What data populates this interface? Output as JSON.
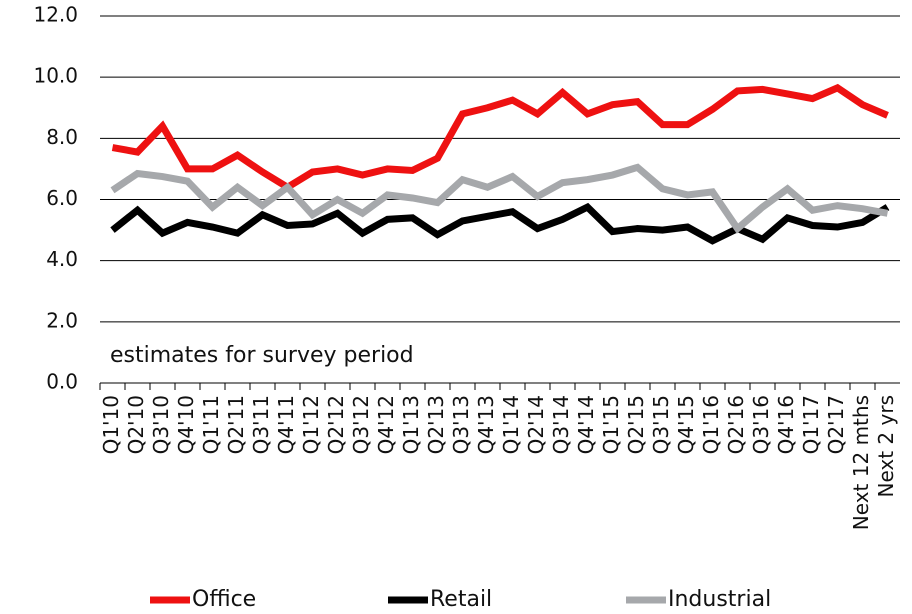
{
  "chart_data": {
    "type": "line",
    "annotation": "estimates for survey period",
    "categories": [
      "Q1'10",
      "Q2'10",
      "Q3'10",
      "Q4'10",
      "Q1'11",
      "Q2'11",
      "Q3'11",
      "Q4'11",
      "Q1'12",
      "Q2'12",
      "Q3'12",
      "Q4'12",
      "Q1'13",
      "Q2'13",
      "Q3'13",
      "Q4'13",
      "Q1'14",
      "Q2'14",
      "Q3'14",
      "Q4'14",
      "Q1'15",
      "Q2'15",
      "Q3'15",
      "Q4'15",
      "Q1'16",
      "Q2'16",
      "Q3'16",
      "Q4'16",
      "Q1'17",
      "Q2'17",
      "Next 12 mths",
      "Next 2 yrs"
    ],
    "series": [
      {
        "name": "Office",
        "color": "#ee1111",
        "values": [
          7.7,
          7.55,
          8.4,
          7.0,
          7.0,
          7.45,
          6.9,
          6.4,
          6.9,
          7.0,
          6.8,
          7.0,
          6.95,
          7.35,
          8.8,
          9.0,
          9.25,
          8.8,
          9.5,
          8.8,
          9.1,
          9.2,
          8.45,
          8.45,
          8.95,
          9.55,
          9.6,
          9.45,
          9.3,
          9.65,
          9.1,
          8.75
        ]
      },
      {
        "name": "Retail",
        "color": "#000000",
        "values": [
          5.0,
          5.65,
          4.9,
          5.25,
          5.1,
          4.9,
          5.5,
          5.15,
          5.2,
          5.55,
          4.9,
          5.35,
          5.4,
          4.85,
          5.3,
          5.45,
          5.6,
          5.05,
          5.35,
          5.75,
          4.95,
          5.05,
          5.0,
          5.1,
          4.65,
          5.05,
          4.7,
          5.4,
          5.15,
          5.1,
          5.25,
          5.75
        ]
      },
      {
        "name": "Industrial",
        "color": "#a6a8ab",
        "values": [
          6.3,
          6.85,
          6.75,
          6.6,
          5.75,
          6.4,
          5.8,
          6.4,
          5.5,
          6.0,
          5.55,
          6.15,
          6.05,
          5.9,
          6.65,
          6.4,
          6.75,
          6.1,
          6.55,
          6.65,
          6.8,
          7.05,
          6.35,
          6.15,
          6.25,
          5.05,
          5.75,
          6.35,
          5.65,
          5.8,
          5.7,
          5.55
        ]
      }
    ],
    "ylim": [
      0,
      12
    ],
    "yticks": [
      {
        "value": 0,
        "label": "0.0"
      },
      {
        "value": 2,
        "label": "2.0"
      },
      {
        "value": 4,
        "label": "4.0"
      },
      {
        "value": 6,
        "label": "6.0"
      },
      {
        "value": 8,
        "label": "8.0"
      },
      {
        "value": 10,
        "label": "10.0"
      },
      {
        "value": 12,
        "label": "12.0"
      }
    ],
    "grid": true
  }
}
